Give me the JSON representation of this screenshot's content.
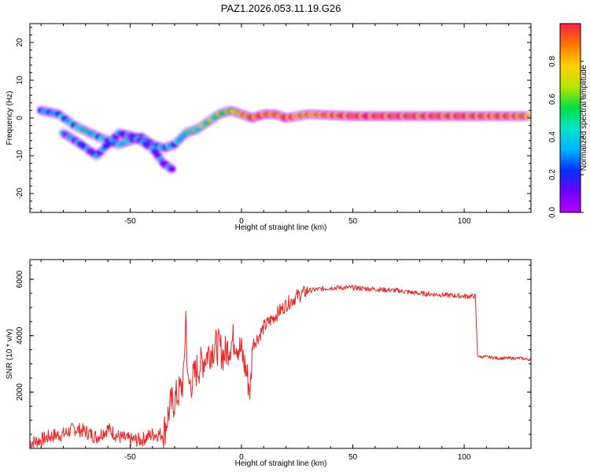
{
  "title": "PAZ1.2026.053.11.19.G26",
  "colormap": [
    "#b400ff",
    "#6e00ff",
    "#0030ff",
    "#00b4ff",
    "#00e6c8",
    "#00e040",
    "#b8e600",
    "#ffd000",
    "#ff7800",
    "#ff1e46"
  ],
  "line_color": "#ee2222",
  "chart_data": [
    {
      "type": "heatmap",
      "title": "PAZ1.2026.053.11.19.G26",
      "xlabel": "Height of straight line (km)",
      "ylabel": "Frequency (Hz)",
      "xlim": [
        -95,
        130
      ],
      "ylim": [
        -25,
        25
      ],
      "xticks": [
        -50,
        0,
        50,
        100
      ],
      "xtick_labels": [
        "-50",
        "0",
        "50",
        "100"
      ],
      "yticks": [
        -20,
        -10,
        0,
        10,
        20
      ],
      "ytick_labels": [
        "-20",
        "-10",
        "0",
        "10",
        "20"
      ],
      "colorbar": {
        "label": "Normalized spectral amplitude",
        "range": [
          0,
          1
        ],
        "ticks": [
          0.0,
          0.2,
          0.4,
          0.6,
          0.8
        ],
        "tick_labels": [
          "0.0",
          "0.2",
          "0.4",
          "0.6",
          "0.8"
        ]
      },
      "ridges": [
        {
          "name": "main",
          "points": [
            [
              -90,
              2,
              0.3
            ],
            [
              -82,
              1,
              0.3
            ],
            [
              -75,
              -2,
              0.35
            ],
            [
              -68,
              -4,
              0.4
            ],
            [
              -60,
              -6,
              0.35
            ],
            [
              -55,
              -7,
              0.4
            ],
            [
              -50,
              -6,
              0.4
            ],
            [
              -45,
              -5,
              0.3
            ],
            [
              -40,
              -7,
              0.3
            ],
            [
              -35,
              -8,
              0.35
            ],
            [
              -30,
              -7,
              0.35
            ],
            [
              -25,
              -4,
              0.45
            ],
            [
              -20,
              -3,
              0.5
            ],
            [
              -15,
              -1,
              0.55
            ],
            [
              -10,
              1,
              0.6
            ],
            [
              -5,
              2,
              0.6
            ],
            [
              0,
              1,
              0.75
            ],
            [
              5,
              0,
              0.9
            ],
            [
              10,
              1,
              0.85
            ],
            [
              15,
              1,
              0.85
            ],
            [
              20,
              0,
              0.9
            ],
            [
              30,
              1,
              0.8
            ],
            [
              50,
              0.5,
              0.92
            ],
            [
              80,
              0.5,
              0.92
            ],
            [
              105,
              0.5,
              0.9
            ],
            [
              130,
              0.5,
              0.88
            ]
          ]
        },
        {
          "name": "lower-branch",
          "points": [
            [
              -80,
              -4,
              0.25
            ],
            [
              -72,
              -7,
              0.25
            ],
            [
              -65,
              -10,
              0.25
            ],
            [
              -55,
              -4,
              0.2
            ],
            [
              -48,
              -5,
              0.25
            ],
            [
              -40,
              -8,
              0.2
            ],
            [
              -35,
              -12,
              0.18
            ],
            [
              -30,
              -14,
              0.15
            ]
          ]
        }
      ]
    },
    {
      "type": "line",
      "xlabel": "Height of straight line (km)",
      "ylabel": "SNR (10 * v/v)",
      "xlim": [
        -95,
        130
      ],
      "ylim": [
        0,
        6700
      ],
      "xticks": [
        -50,
        0,
        50,
        100
      ],
      "xtick_labels": [
        "-50",
        "0",
        "50",
        "100"
      ],
      "yticks": [
        2000,
        4000,
        6000
      ],
      "ytick_labels": [
        "2000",
        "4000",
        "6000"
      ],
      "series": [
        {
          "name": "SNR",
          "x": [
            -95,
            -90,
            -85,
            -80,
            -75,
            -70,
            -65,
            -60,
            -55,
            -50,
            -45,
            -40,
            -35,
            -32,
            -30,
            -28,
            -26,
            -25,
            -24,
            -22,
            -20,
            -18,
            -15,
            -12,
            -10,
            -8,
            -5,
            -3,
            0,
            2,
            4,
            5,
            8,
            10,
            15,
            20,
            25,
            30,
            35,
            40,
            50,
            60,
            70,
            80,
            90,
            100,
            105,
            106,
            107,
            110,
            115,
            120,
            125,
            130
          ],
          "y": [
            200,
            300,
            450,
            500,
            700,
            600,
            400,
            700,
            400,
            300,
            300,
            500,
            500,
            1500,
            1700,
            2000,
            2400,
            4800,
            2200,
            2400,
            2800,
            3000,
            3400,
            3600,
            3600,
            3300,
            3700,
            3900,
            3400,
            2800,
            2000,
            3700,
            4000,
            4300,
            4700,
            5100,
            5400,
            5600,
            5650,
            5700,
            5700,
            5650,
            5600,
            5500,
            5450,
            5400,
            5400,
            3300,
            3250,
            3250,
            3200,
            3200,
            3200,
            3150
          ]
        }
      ]
    }
  ]
}
